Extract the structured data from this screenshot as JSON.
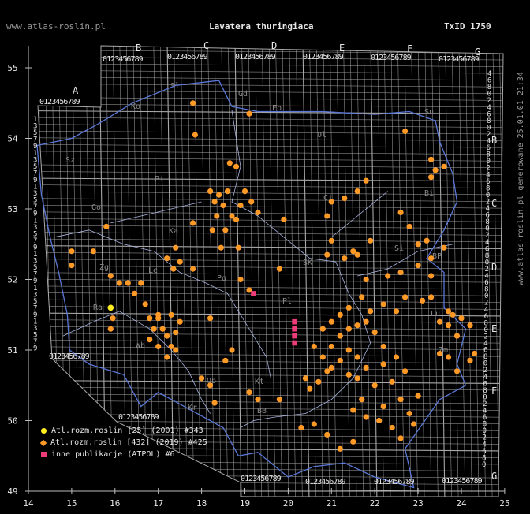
{
  "header": {
    "site": "www.atlas-roslin.pl",
    "title": "Lavatera thuringiaca",
    "txid": "TxID 1750"
  },
  "side_label": "www.atlas-roslin.pl generowane 25.01.01 21:34",
  "x_ticks": [
    "14",
    "15",
    "16",
    "17",
    "18",
    "19",
    "20",
    "21",
    "22",
    "23",
    "24",
    "25"
  ],
  "y_ticks": [
    "49",
    "50",
    "51",
    "52",
    "53",
    "54",
    "55"
  ],
  "letters_top": [
    "A",
    "B",
    "C",
    "D",
    "E",
    "F",
    "G"
  ],
  "letters_right": [
    "B",
    "C",
    "D",
    "E",
    "F",
    "G"
  ],
  "digits": "0123456789",
  "regions": [
    "Sl",
    "Gd",
    "Eb",
    "Ko",
    "Su",
    "Ol",
    "Sz",
    "Pi",
    "Ci",
    "Bi",
    "Go",
    "Ka",
    "Po",
    "Si",
    "SK",
    "BP",
    "Le",
    "Zg",
    "Ra",
    "Wb",
    "Pl",
    "Lu",
    "Zm",
    "Op",
    "Kt",
    "Kr",
    "BB"
  ],
  "colors": {
    "background": "#000000",
    "grid": "#a8a8a8",
    "border": "#5a78d8",
    "legacy": "#ffee22",
    "current": "#ff9a26",
    "atpol": "#ee3c78"
  },
  "legend": [
    {
      "label": "Atl.rozm.roslin [25] (2001) #343",
      "color": "#ffee22",
      "shape": "circle"
    },
    {
      "label": "Atl.rozm.roslin [432] (2019) #425",
      "color": "#ff9a26",
      "shape": "diamond"
    },
    {
      "label": "inne publikacje (ATPOL) #6",
      "color": "#ee3c78",
      "shape": "square"
    }
  ],
  "records": {
    "legacy_2001": [
      [
        15.9,
        51.6
      ]
    ],
    "current_2019": [
      [
        15.0,
        52.4
      ],
      [
        15.0,
        52.2
      ],
      [
        15.5,
        52.4
      ],
      [
        15.8,
        52.75
      ],
      [
        15.9,
        52.05
      ],
      [
        15.9,
        51.3
      ],
      [
        15.95,
        51.45
      ],
      [
        16.1,
        51.95
      ],
      [
        16.3,
        51.95
      ],
      [
        16.45,
        51.8
      ],
      [
        16.6,
        51.95
      ],
      [
        16.7,
        51.65
      ],
      [
        16.8,
        51.45
      ],
      [
        16.9,
        51.3
      ],
      [
        17.0,
        51.45
      ],
      [
        17.1,
        51.3
      ],
      [
        17.2,
        51.2
      ],
      [
        17.3,
        51.05
      ],
      [
        17.4,
        51.25
      ],
      [
        17.5,
        51.4
      ],
      [
        16.8,
        51.15
      ],
      [
        17.0,
        51.05
      ],
      [
        17.2,
        50.9
      ],
      [
        17.4,
        51.0
      ],
      [
        17.0,
        51.5
      ],
      [
        17.3,
        51.5
      ],
      [
        17.2,
        52.3
      ],
      [
        17.35,
        52.15
      ],
      [
        17.5,
        52.25
      ],
      [
        17.4,
        52.45
      ],
      [
        17.8,
        52.15
      ],
      [
        17.8,
        52.8
      ],
      [
        18.2,
        51.45
      ],
      [
        18.0,
        50.6
      ],
      [
        18.2,
        50.5
      ],
      [
        18.3,
        50.25
      ],
      [
        18.55,
        50.85
      ],
      [
        18.7,
        51.0
      ],
      [
        17.8,
        54.5
      ],
      [
        17.85,
        54.05
      ],
      [
        18.65,
        53.65
      ],
      [
        18.8,
        53.6
      ],
      [
        19.1,
        54.35
      ],
      [
        18.2,
        53.25
      ],
      [
        18.3,
        53.1
      ],
      [
        18.4,
        53.2
      ],
      [
        18.5,
        53.05
      ],
      [
        18.6,
        53.25
      ],
      [
        18.7,
        52.9
      ],
      [
        18.35,
        52.9
      ],
      [
        18.55,
        52.7
      ],
      [
        18.8,
        52.85
      ],
      [
        18.9,
        53.05
      ],
      [
        19.0,
        53.25
      ],
      [
        19.15,
        53.1
      ],
      [
        18.25,
        52.7
      ],
      [
        18.45,
        52.45
      ],
      [
        18.85,
        52.45
      ],
      [
        19.3,
        52.95
      ],
      [
        19.1,
        51.85
      ],
      [
        18.9,
        52.0
      ],
      [
        19.8,
        52.15
      ],
      [
        19.9,
        52.85
      ],
      [
        19.1,
        50.4
      ],
      [
        19.3,
        50.3
      ],
      [
        19.8,
        50.3
      ],
      [
        20.4,
        50.6
      ],
      [
        20.5,
        50.45
      ],
      [
        20.7,
        50.55
      ],
      [
        20.9,
        50.7
      ],
      [
        21.0,
        51.05
      ],
      [
        21.2,
        51.2
      ],
      [
        21.4,
        51.0
      ],
      [
        21.6,
        50.9
      ],
      [
        20.8,
        51.3
      ],
      [
        21.0,
        51.4
      ],
      [
        21.2,
        51.5
      ],
      [
        21.4,
        51.3
      ],
      [
        21.6,
        51.35
      ],
      [
        21.8,
        51.4
      ],
      [
        22.0,
        51.25
      ],
      [
        22.2,
        51.05
      ],
      [
        20.6,
        51.05
      ],
      [
        20.8,
        50.9
      ],
      [
        21.0,
        50.75
      ],
      [
        21.2,
        50.85
      ],
      [
        21.4,
        50.65
      ],
      [
        21.6,
        50.6
      ],
      [
        21.8,
        50.75
      ],
      [
        22.0,
        50.5
      ],
      [
        22.2,
        50.8
      ],
      [
        22.4,
        50.55
      ],
      [
        22.6,
        50.3
      ],
      [
        22.8,
        50.1
      ],
      [
        23.0,
        50.35
      ],
      [
        22.7,
        50.7
      ],
      [
        22.5,
        50.9
      ],
      [
        22.9,
        49.95
      ],
      [
        22.2,
        50.2
      ],
      [
        22.1,
        50.0
      ],
      [
        22.4,
        49.9
      ],
      [
        22.6,
        49.75
      ],
      [
        21.7,
        50.3
      ],
      [
        21.5,
        50.15
      ],
      [
        21.8,
        50.05
      ],
      [
        20.3,
        49.9
      ],
      [
        20.6,
        49.95
      ],
      [
        20.9,
        49.8
      ],
      [
        21.2,
        49.6
      ],
      [
        21.5,
        49.7
      ],
      [
        21.4,
        51.6
      ],
      [
        21.7,
        51.75
      ],
      [
        21.9,
        51.55
      ],
      [
        22.2,
        51.65
      ],
      [
        22.5,
        51.55
      ],
      [
        22.7,
        51.75
      ],
      [
        22.3,
        52.05
      ],
      [
        22.6,
        52.1
      ],
      [
        21.3,
        52.3
      ],
      [
        21.5,
        52.4
      ],
      [
        21.8,
        52.0
      ],
      [
        20.9,
        52.35
      ],
      [
        21.0,
        52.55
      ],
      [
        21.6,
        52.35
      ],
      [
        21.9,
        52.55
      ],
      [
        20.9,
        52.9
      ],
      [
        21.0,
        53.1
      ],
      [
        21.3,
        53.15
      ],
      [
        21.6,
        53.25
      ],
      [
        21.8,
        53.4
      ],
      [
        22.7,
        54.1
      ],
      [
        22.6,
        52.95
      ],
      [
        23.3,
        53.7
      ],
      [
        23.4,
        53.55
      ],
      [
        23.6,
        53.6
      ],
      [
        23.3,
        53.45
      ],
      [
        23.2,
        52.55
      ],
      [
        22.8,
        52.75
      ],
      [
        23.0,
        52.5
      ],
      [
        23.6,
        52.45
      ],
      [
        23.3,
        52.3
      ],
      [
        23.0,
        52.2
      ],
      [
        23.3,
        52.05
      ],
      [
        23.3,
        51.75
      ],
      [
        23.1,
        51.7
      ],
      [
        23.7,
        51.55
      ],
      [
        23.5,
        51.4
      ],
      [
        23.7,
        51.35
      ],
      [
        23.8,
        51.5
      ],
      [
        24.0,
        51.45
      ],
      [
        24.2,
        51.35
      ],
      [
        23.5,
        50.95
      ],
      [
        23.7,
        50.9
      ],
      [
        23.9,
        51.2
      ],
      [
        24.3,
        50.95
      ],
      [
        24.2,
        50.85
      ],
      [
        23.9,
        50.7
      ]
    ],
    "atpol": [
      [
        19.2,
        51.8
      ],
      [
        20.15,
        51.4
      ],
      [
        20.15,
        51.3
      ],
      [
        20.15,
        51.2
      ],
      [
        20.15,
        51.1
      ]
    ]
  }
}
